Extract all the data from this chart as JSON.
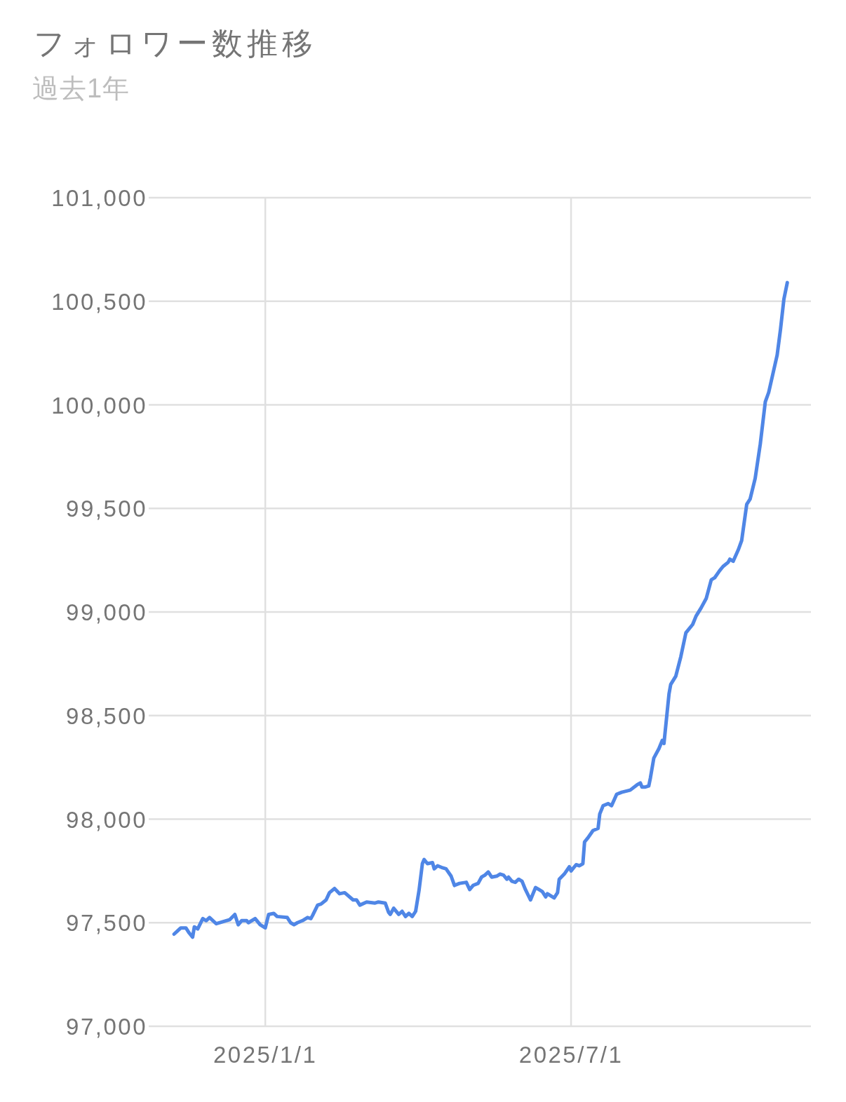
{
  "chart_data": {
    "type": "line",
    "title": "フォロワー数推移",
    "subtitle": "過去1年",
    "x": [
      "2024-11-08",
      "2024-11-12",
      "2024-11-15",
      "2024-11-17",
      "2024-11-19",
      "2024-11-20",
      "2024-11-22",
      "2024-11-25",
      "2024-11-27",
      "2024-11-29",
      "2024-12-03",
      "2024-12-11",
      "2024-12-14",
      "2024-12-16",
      "2024-12-18",
      "2024-12-21",
      "2024-12-22",
      "2024-12-26",
      "2024-12-29",
      "2025-01-01",
      "2025-01-03",
      "2025-01-06",
      "2025-01-08",
      "2025-01-14",
      "2025-01-16",
      "2025-01-18",
      "2025-01-20",
      "2025-01-23",
      "2025-01-26",
      "2025-01-28",
      "2025-01-29",
      "2025-02-01",
      "2025-02-03",
      "2025-02-06",
      "2025-02-08",
      "2025-02-11",
      "2025-02-14",
      "2025-02-17",
      "2025-02-22",
      "2025-02-24",
      "2025-02-26",
      "2025-03-02",
      "2025-03-07",
      "2025-03-09",
      "2025-03-13",
      "2025-03-15",
      "2025-03-16",
      "2025-03-18",
      "2025-03-21",
      "2025-03-23",
      "2025-03-25",
      "2025-03-27",
      "2025-03-29",
      "2025-03-31",
      "2025-04-02",
      "2025-04-04",
      "2025-04-05",
      "2025-04-07",
      "2025-04-10",
      "2025-04-11",
      "2025-04-13",
      "2025-04-16",
      "2025-04-18",
      "2025-04-21",
      "2025-04-23",
      "2025-04-26",
      "2025-04-30",
      "2025-05-02",
      "2025-05-04",
      "2025-05-07",
      "2025-05-09",
      "2025-05-11",
      "2025-05-13",
      "2025-05-15",
      "2025-05-18",
      "2025-05-20",
      "2025-05-22",
      "2025-05-24",
      "2025-05-25",
      "2025-05-27",
      "2025-05-29",
      "2025-05-31",
      "2025-06-02",
      "2025-06-04",
      "2025-06-07",
      "2025-06-10",
      "2025-06-12",
      "2025-06-14",
      "2025-06-16",
      "2025-06-17",
      "2025-06-19",
      "2025-06-21",
      "2025-06-23",
      "2025-06-24",
      "2025-06-27",
      "2025-06-30",
      "2025-07-01",
      "2025-07-04",
      "2025-07-06",
      "2025-07-08",
      "2025-07-09",
      "2025-07-11",
      "2025-07-14",
      "2025-07-17",
      "2025-07-18",
      "2025-07-20",
      "2025-07-23",
      "2025-07-25",
      "2025-07-28",
      "2025-07-31",
      "2025-08-05",
      "2025-08-09",
      "2025-08-11",
      "2025-08-12",
      "2025-08-14",
      "2025-08-16",
      "2025-08-17",
      "2025-08-19",
      "2025-08-22",
      "2025-08-24",
      "2025-08-25",
      "2025-08-28",
      "2025-08-29",
      "2025-09-01",
      "2025-09-04",
      "2025-09-07",
      "2025-09-11",
      "2025-09-13",
      "2025-09-16",
      "2025-09-19",
      "2025-09-22",
      "2025-09-24",
      "2025-09-27",
      "2025-09-29",
      "2025-10-02",
      "2025-10-03",
      "2025-10-05",
      "2025-10-08",
      "2025-10-10",
      "2025-10-13",
      "2025-10-15",
      "2025-10-18",
      "2025-10-21",
      "2025-10-24",
      "2025-10-26",
      "2025-10-31",
      "2025-11-02",
      "2025-11-04",
      "2025-11-06"
    ],
    "series": [
      {
        "color": "#4f86e6",
        "values": [
          97445,
          97475,
          97475,
          97450,
          97430,
          97480,
          97470,
          97520,
          97510,
          97525,
          97495,
          97515,
          97540,
          97490,
          97510,
          97510,
          97500,
          97520,
          97490,
          97475,
          97540,
          97545,
          97530,
          97525,
          97500,
          97490,
          97500,
          97510,
          97525,
          97520,
          97535,
          97585,
          97590,
          97610,
          97645,
          97665,
          97640,
          97645,
          97610,
          97610,
          97585,
          97600,
          97595,
          97600,
          97595,
          97550,
          97540,
          97570,
          97540,
          97555,
          97530,
          97545,
          97530,
          97555,
          97655,
          97785,
          97805,
          97785,
          97790,
          97760,
          97775,
          97765,
          97760,
          97725,
          97680,
          97690,
          97695,
          97660,
          97680,
          97690,
          97720,
          97730,
          97745,
          97720,
          97725,
          97735,
          97730,
          97710,
          97720,
          97700,
          97695,
          97710,
          97700,
          97660,
          97610,
          97670,
          97660,
          97650,
          97625,
          97640,
          97630,
          97620,
          97645,
          97710,
          97735,
          97770,
          97750,
          97780,
          97775,
          97785,
          97890,
          97910,
          97945,
          97955,
          98025,
          98065,
          98075,
          98065,
          98120,
          98130,
          98140,
          98165,
          98175,
          98155,
          98155,
          98160,
          98200,
          98295,
          98340,
          98380,
          98365,
          98605,
          98650,
          98690,
          98785,
          98900,
          98940,
          98980,
          99020,
          99065,
          99155,
          99165,
          99200,
          99220,
          99240,
          99255,
          99245,
          99300,
          99345,
          99520,
          99545,
          99645,
          99810,
          100015,
          100060,
          100240,
          100365,
          100510,
          100590
        ]
      }
    ],
    "xlim": [
      "2024-10-24",
      "2025-11-20"
    ],
    "xticks": [
      {
        "value": "2025-01-01",
        "label": "2025/1/1"
      },
      {
        "value": "2025-07-01",
        "label": "2025/7/1"
      }
    ],
    "ylim": [
      97000,
      101000
    ],
    "yticks": [
      {
        "value": 97000,
        "label": "97,000"
      },
      {
        "value": 97500,
        "label": "97,500"
      },
      {
        "value": 98000,
        "label": "98,000"
      },
      {
        "value": 98500,
        "label": "98,500"
      },
      {
        "value": 99000,
        "label": "99,000"
      },
      {
        "value": 99500,
        "label": "99,500"
      },
      {
        "value": 100000,
        "label": "100,000"
      },
      {
        "value": 100500,
        "label": "100,500"
      },
      {
        "value": 101000,
        "label": "101,000"
      }
    ],
    "grid": true,
    "line_style": "solid"
  }
}
